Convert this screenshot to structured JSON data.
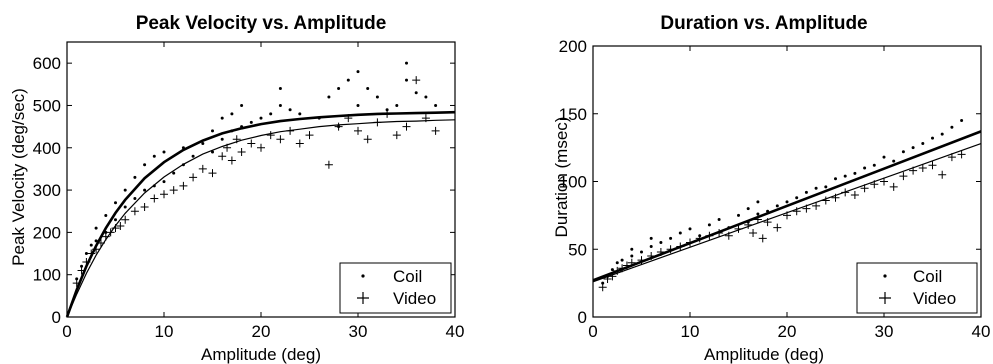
{
  "chart_data": [
    {
      "type": "scatter",
      "title": "Peak Velocity vs. Amplitude",
      "xlabel": "Amplitude (deg)",
      "ylabel": "Peak Velocity (deg/sec)",
      "xlim": [
        0,
        40
      ],
      "ylim": [
        0,
        650
      ],
      "xticks": [
        0,
        10,
        20,
        30,
        40
      ],
      "yticks": [
        0,
        100,
        200,
        300,
        400,
        500,
        600
      ],
      "grid": false,
      "legend": {
        "placement": "bottom-right",
        "entries": [
          "Coil",
          "Video"
        ]
      },
      "series": [
        {
          "name": "Coil",
          "marker": "dot",
          "x": [
            1,
            1.5,
            2,
            2.5,
            3,
            3,
            4,
            4,
            5,
            5,
            6,
            6,
            7,
            7,
            8,
            8,
            9,
            9,
            10,
            10,
            11,
            12,
            12,
            13,
            14,
            15,
            15,
            16,
            16,
            17,
            17,
            18,
            18,
            19,
            20,
            21,
            22,
            22,
            23,
            24,
            26,
            27,
            28,
            28,
            29,
            30,
            30,
            31,
            32,
            33,
            34,
            35,
            35,
            36,
            37,
            38
          ],
          "y": [
            90,
            120,
            150,
            170,
            180,
            210,
            200,
            240,
            230,
            270,
            260,
            300,
            280,
            330,
            300,
            360,
            310,
            380,
            320,
            390,
            340,
            360,
            400,
            380,
            410,
            390,
            440,
            420,
            470,
            440,
            480,
            450,
            500,
            460,
            470,
            480,
            500,
            540,
            490,
            480,
            470,
            520,
            540,
            450,
            560,
            500,
            580,
            540,
            520,
            490,
            500,
            560,
            600,
            530,
            520,
            500
          ]
        },
        {
          "name": "Video",
          "marker": "plus",
          "x": [
            1,
            1.5,
            2,
            2.5,
            3,
            3.5,
            4,
            4.5,
            5,
            5.5,
            6,
            7,
            8,
            9,
            10,
            11,
            12,
            13,
            14,
            15,
            16,
            16.5,
            17,
            17.5,
            18,
            19,
            20,
            21,
            22,
            23,
            24,
            25,
            27,
            28,
            29,
            30,
            31,
            32,
            33,
            34,
            35,
            36,
            37,
            38
          ],
          "y": [
            80,
            110,
            130,
            150,
            160,
            175,
            190,
            200,
            210,
            215,
            230,
            250,
            260,
            280,
            290,
            300,
            310,
            330,
            350,
            340,
            380,
            400,
            370,
            420,
            390,
            410,
            400,
            430,
            420,
            440,
            410,
            430,
            360,
            450,
            470,
            440,
            420,
            460,
            480,
            430,
            450,
            560,
            470,
            440
          ]
        }
      ],
      "fits": [
        {
          "name": "Coil",
          "style": "thick",
          "x": [
            0,
            1,
            2,
            3,
            4,
            5,
            6,
            8,
            10,
            12,
            14,
            16,
            18,
            20,
            22,
            24,
            26,
            28,
            30,
            32,
            34,
            36,
            38,
            40
          ],
          "y": [
            0,
            64,
            120,
            168,
            210,
            246,
            277,
            328,
            366,
            395,
            417,
            434,
            446,
            456,
            463,
            468,
            472,
            475,
            478,
            480,
            481,
            482,
            483,
            484
          ]
        },
        {
          "name": "Video",
          "style": "thin",
          "x": [
            0,
            1,
            2,
            3,
            4,
            5,
            6,
            8,
            10,
            12,
            14,
            16,
            18,
            20,
            22,
            24,
            26,
            28,
            30,
            32,
            34,
            36,
            38,
            40
          ],
          "y": [
            0,
            54,
            103,
            146,
            183,
            216,
            245,
            293,
            331,
            361,
            385,
            403,
            418,
            429,
            438,
            444,
            450,
            454,
            457,
            460,
            462,
            463,
            465,
            466
          ]
        }
      ]
    },
    {
      "type": "scatter",
      "title": "Duration vs. Amplitude",
      "xlabel": "Amplitude (deg)",
      "ylabel": "Duration (msec)",
      "xlim": [
        0,
        40
      ],
      "ylim": [
        0,
        200
      ],
      "xticks": [
        0,
        10,
        20,
        30,
        40
      ],
      "yticks": [
        0,
        50,
        100,
        150,
        200
      ],
      "grid": false,
      "legend": {
        "placement": "bottom-right",
        "entries": [
          "Coil",
          "Video"
        ]
      },
      "series": [
        {
          "name": "Coil",
          "marker": "dot",
          "x": [
            1,
            1.5,
            2,
            2.5,
            3,
            4,
            4,
            5,
            6,
            6,
            7,
            8,
            9,
            10,
            11,
            12,
            13,
            14,
            15,
            16,
            16,
            17,
            17,
            18,
            19,
            20,
            21,
            22,
            23,
            24,
            25,
            26,
            27,
            28,
            29,
            30,
            31,
            32,
            33,
            34,
            35,
            36,
            37,
            38
          ],
          "y": [
            25,
            30,
            35,
            40,
            42,
            45,
            50,
            48,
            52,
            58,
            55,
            58,
            62,
            65,
            60,
            68,
            72,
            66,
            75,
            70,
            80,
            76,
            85,
            78,
            82,
            85,
            88,
            92,
            95,
            96,
            102,
            104,
            106,
            110,
            112,
            118,
            115,
            122,
            125,
            128,
            132,
            135,
            140,
            145
          ]
        },
        {
          "name": "Video",
          "marker": "plus",
          "x": [
            1,
            1.5,
            2,
            2.5,
            3,
            3.5,
            4,
            5,
            6,
            7,
            8,
            9,
            10,
            11,
            12,
            13,
            14,
            15,
            16,
            16.5,
            17,
            17.5,
            18,
            19,
            20,
            21,
            22,
            23,
            24,
            25,
            26,
            27,
            28,
            29,
            30,
            31,
            32,
            33,
            34,
            35,
            36,
            37,
            38
          ],
          "y": [
            22,
            28,
            30,
            34,
            36,
            38,
            40,
            42,
            45,
            48,
            50,
            52,
            55,
            58,
            60,
            62,
            60,
            65,
            68,
            62,
            72,
            58,
            70,
            66,
            75,
            78,
            80,
            82,
            86,
            88,
            92,
            90,
            95,
            98,
            100,
            96,
            104,
            108,
            110,
            112,
            105,
            118,
            120
          ]
        }
      ],
      "fits": [
        {
          "name": "Coil",
          "style": "thick",
          "x": [
            0,
            40
          ],
          "y": [
            27,
            137
          ]
        },
        {
          "name": "Video",
          "style": "thin",
          "x": [
            0,
            40
          ],
          "y": [
            26,
            128
          ]
        }
      ]
    }
  ]
}
